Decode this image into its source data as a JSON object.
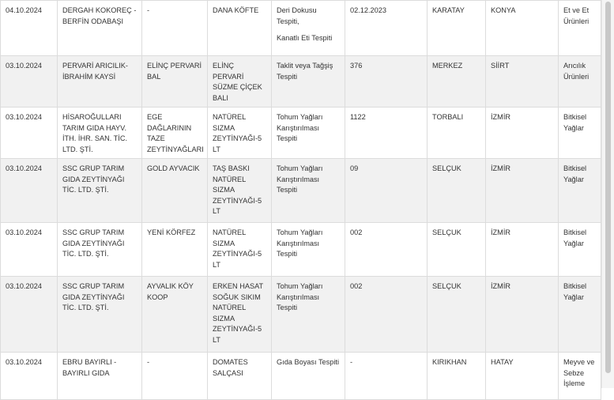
{
  "rows": [
    {
      "date": "04.10.2024",
      "company": "DERGAH KOKOREÇ - BERFİN ODABAŞI",
      "brand": "-",
      "product": "DANA KÖFTE",
      "violation_1": "Deri Dokusu Tespiti,",
      "violation_2": "Kanatlı Eti Tespiti",
      "lot": "02.12.2023",
      "district": "KARATAY",
      "city": "KONYA",
      "category": "Et ve Et Ürünleri"
    },
    {
      "date": "03.10.2024",
      "company": "PERVARİ ARICILIK- İBRAHİM KAYSİ",
      "brand": "ELİNÇ PERVARİ BAL",
      "product": "ELİNÇ PERVARİ SÜZME ÇİÇEK BALI",
      "violation_1": "Taklit veya Tağşiş Tespiti",
      "lot": "376",
      "district": "MERKEZ",
      "city": "SİİRT",
      "category": "Arıcılık Ürünleri"
    },
    {
      "date": "03.10.2024",
      "company": "HİSAROĞULLARI TARIM GIDA HAYV. İTH. İHR. SAN. TİC. LTD. ŞTİ.",
      "brand": "EGE DAĞLARININ TAZE ZEYTİNYAĞLARI",
      "product": "NATÜREL SIZMA ZEYTİNYAĞI-5 LT",
      "violation_1": "Tohum Yağları Karıştırılması Tespiti",
      "lot": "1122",
      "district": "TORBALI",
      "city": "İZMİR",
      "category": "Bitkisel Yağlar"
    },
    {
      "date": "03.10.2024",
      "company": "SSC GRUP TARIM GIDA ZEYTİNYAĞI TİC. LTD. ŞTİ.",
      "brand": "GOLD AYVACIK",
      "product": "TAŞ BASKI NATÜREL SIZMA ZEYTİNYAĞI-5 LT",
      "violation_1": "Tohum Yağları Karıştırılması Tespiti",
      "lot": "09",
      "district": "SELÇUK",
      "city": "İZMİR",
      "category": "Bitkisel Yağlar"
    },
    {
      "date": "03.10.2024",
      "company": "SSC GRUP TARIM GIDA ZEYTİNYAĞI TİC. LTD. ŞTİ.",
      "brand": "YENİ KÖRFEZ",
      "product": "NATÜREL SIZMA ZEYTİNYAĞI-5 LT",
      "violation_1": "Tohum Yağları Karıştırılması Tespiti",
      "lot": "002",
      "district": "SELÇUK",
      "city": "İZMİR",
      "category": "Bitkisel Yağlar"
    },
    {
      "date": "03.10.2024",
      "company": "SSC GRUP TARIM GIDA ZEYTİNYAĞI TİC. LTD. ŞTİ.",
      "brand": "AYVALIK KÖY KOOP",
      "product": "ERKEN HASAT SOĞUK SIKIM NATÜREL SIZMA ZEYTİNYAĞI-5 LT",
      "violation_1": "Tohum Yağları Karıştırılması Tespiti",
      "lot": "002",
      "district": "SELÇUK",
      "city": "İZMİR",
      "category": "Bitkisel Yağlar"
    },
    {
      "date": "03.10.2024",
      "company": "EBRU BAYIRLI - BAYIRLI GIDA",
      "brand": "-",
      "product": "DOMATES SALÇASI",
      "violation_1": "Gıda Boyası Tespiti",
      "lot": "-",
      "district": "KIRIKHAN",
      "city": "HATAY",
      "category": "Meyve ve Sebze İşleme"
    }
  ]
}
